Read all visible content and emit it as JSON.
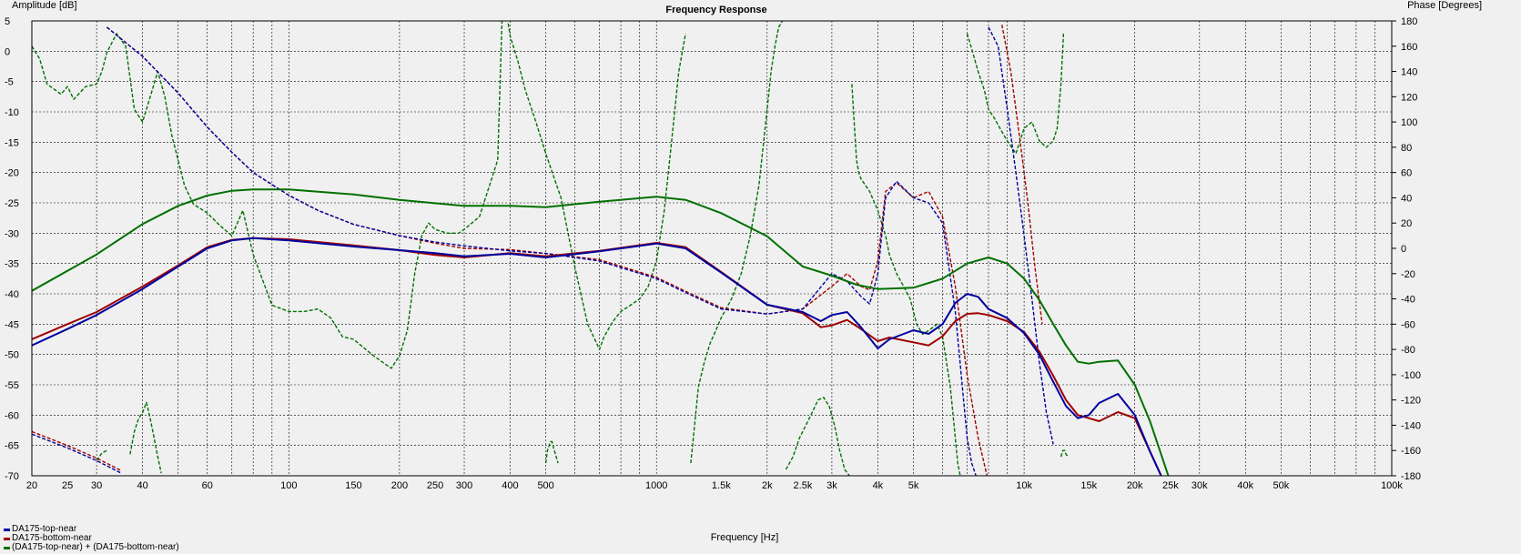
{
  "chart_data": {
    "type": "line",
    "title": "Frequency Response",
    "xlabel": "Frequency [Hz]",
    "ylabel_left": "Amplitude [dB]",
    "ylabel_right": "Phase [Degrees]",
    "x_scale": "log",
    "xlim": [
      20,
      100000
    ],
    "ylim_left": [
      -70,
      5
    ],
    "ylim_right": [
      -180,
      180
    ],
    "grid": true,
    "legend_position": "bottom-left",
    "x_ticks": [
      {
        "v": 20,
        "label": "20"
      },
      {
        "v": 25,
        "label": "25"
      },
      {
        "v": 30,
        "label": "30"
      },
      {
        "v": 40,
        "label": "40"
      },
      {
        "v": 60,
        "label": "60"
      },
      {
        "v": 100,
        "label": "100"
      },
      {
        "v": 150,
        "label": "150"
      },
      {
        "v": 200,
        "label": "200"
      },
      {
        "v": 250,
        "label": "250"
      },
      {
        "v": 300,
        "label": "300"
      },
      {
        "v": 400,
        "label": "400"
      },
      {
        "v": 500,
        "label": "500"
      },
      {
        "v": 1000,
        "label": "1000"
      },
      {
        "v": 1500,
        "label": "1.5k"
      },
      {
        "v": 2000,
        "label": "2k"
      },
      {
        "v": 2500,
        "label": "2.5k"
      },
      {
        "v": 3000,
        "label": "3k"
      },
      {
        "v": 4000,
        "label": "4k"
      },
      {
        "v": 5000,
        "label": "5k"
      },
      {
        "v": 10000,
        "label": "10k"
      },
      {
        "v": 15000,
        "label": "15k"
      },
      {
        "v": 20000,
        "label": "20k"
      },
      {
        "v": 25000,
        "label": "25k"
      },
      {
        "v": 30000,
        "label": "30k"
      },
      {
        "v": 40000,
        "label": "40k"
      },
      {
        "v": 50000,
        "label": "50k"
      },
      {
        "v": 100000,
        "label": "100k"
      }
    ],
    "y_ticks_left": [
      5,
      0,
      -5,
      -10,
      -15,
      -20,
      -25,
      -30,
      -35,
      -40,
      -45,
      -50,
      -55,
      -60,
      -65,
      -70
    ],
    "y_ticks_right": [
      180,
      160,
      140,
      120,
      100,
      80,
      60,
      40,
      20,
      0,
      -20,
      -40,
      -60,
      -80,
      -100,
      -120,
      -140,
      -160,
      -180
    ],
    "series": [
      {
        "name": "DA175-top-near",
        "color": "#0000a0",
        "kind": "amplitude",
        "axis": "left",
        "x": [
          20,
          25,
          30,
          40,
          50,
          60,
          70,
          80,
          100,
          150,
          200,
          250,
          300,
          400,
          500,
          700,
          1000,
          1200,
          1500,
          2000,
          2500,
          2800,
          3000,
          3300,
          3600,
          4000,
          4300,
          5000,
          5500,
          6000,
          6500,
          7000,
          7500,
          8000,
          9000,
          10000,
          11000,
          12000,
          13000,
          14000,
          15000,
          16000,
          18000,
          20000,
          22000,
          24000
        ],
        "y": [
          -48.5,
          -45.8,
          -43.5,
          -39.2,
          -35.5,
          -32.5,
          -31.2,
          -30.8,
          -31.2,
          -32.2,
          -32.8,
          -33.3,
          -33.8,
          -33.4,
          -34,
          -33,
          -31.7,
          -32.5,
          -36.5,
          -41.8,
          -43,
          -44.5,
          -43.5,
          -43,
          -45.5,
          -49,
          -47.5,
          -46,
          -46.6,
          -45,
          -41.5,
          -40,
          -40.5,
          -42.5,
          -44,
          -46.5,
          -50,
          -54.5,
          -58.5,
          -60.5,
          -60,
          -58,
          -56.5,
          -60,
          -66,
          -71
        ]
      },
      {
        "name": "DA175-bottom-near",
        "color": "#a00000",
        "kind": "amplitude",
        "axis": "left",
        "x": [
          20,
          25,
          30,
          40,
          50,
          60,
          70,
          80,
          100,
          150,
          200,
          250,
          300,
          400,
          500,
          700,
          1000,
          1200,
          1500,
          2000,
          2500,
          2800,
          3000,
          3300,
          3600,
          4000,
          4300,
          5000,
          5500,
          6000,
          6500,
          7000,
          7500,
          8000,
          9000,
          10000,
          11000,
          12000,
          13000,
          14000,
          15000,
          16000,
          18000,
          20000,
          22000,
          24000
        ],
        "y": [
          -47.5,
          -45,
          -43,
          -38.8,
          -35.3,
          -32.3,
          -31.1,
          -30.8,
          -31,
          -32,
          -32.8,
          -33.6,
          -34,
          -33.3,
          -33.8,
          -32.9,
          -31.6,
          -32.3,
          -36.4,
          -41.8,
          -43.2,
          -45.5,
          -45.2,
          -44.3,
          -45.8,
          -47.8,
          -47.2,
          -48,
          -48.5,
          -47,
          -44.5,
          -43.3,
          -43.2,
          -43.5,
          -44.5,
          -46.3,
          -49.5,
          -53.5,
          -57.5,
          -60,
          -60.5,
          -61,
          -59.5,
          -60.5,
          -66,
          -71
        ]
      },
      {
        "name": "(DA175-top-near) + (DA175-bottom-near)",
        "color": "#007000",
        "kind": "amplitude",
        "axis": "left",
        "x": [
          20,
          30,
          40,
          50,
          60,
          70,
          80,
          100,
          150,
          200,
          300,
          400,
          500,
          700,
          1000,
          1200,
          1500,
          2000,
          2500,
          3000,
          3500,
          4000,
          5000,
          6000,
          7000,
          8000,
          9000,
          10000,
          11000,
          12000,
          13000,
          14000,
          15000,
          16000,
          18000,
          20000,
          22000,
          25000
        ],
        "y": [
          -39.5,
          -33.5,
          -28.5,
          -25.5,
          -23.8,
          -23,
          -22.8,
          -22.8,
          -23.6,
          -24.5,
          -25.5,
          -25.5,
          -25.7,
          -24.8,
          -24,
          -24.5,
          -26.7,
          -30.5,
          -35.5,
          -37,
          -38.5,
          -39.2,
          -39,
          -37.5,
          -35,
          -34,
          -35,
          -37.5,
          -41,
          -45,
          -48.5,
          -51.2,
          -51.5,
          -51.2,
          -51,
          -55,
          -61,
          -71
        ]
      },
      {
        "name": "DA175-top-near phase",
        "color": "#0000a0",
        "kind": "phase",
        "axis": "right",
        "segments": [
          {
            "x": [
              20,
              25,
              30,
              35
            ],
            "y": [
              -147,
              -158,
              -168,
              -178
            ]
          },
          {
            "x": [
              32,
              40,
              50,
              60,
              70,
              80,
              100,
              120,
              150,
              200,
              250,
              300,
              400,
              500,
              700,
              1000,
              1200,
              1500,
              2000,
              2500,
              3000,
              3300,
              3600,
              3800,
              4000,
              4200,
              4500,
              5000,
              5500,
              6000,
              6500,
              7000,
              7200,
              7500
            ],
            "y": [
              175,
              152,
              123,
              96,
              76,
              60,
              42,
              30,
              19,
              10,
              5,
              2,
              -2,
              -4,
              -10,
              -24,
              -35,
              -48,
              -52,
              -48,
              -20,
              -26,
              -38,
              -44,
              -20,
              40,
              53,
              40,
              36,
              20,
              -50,
              -150,
              -170,
              -185
            ]
          },
          {
            "x": [
              8000,
              8500,
              9000,
              9500,
              10000,
              10500,
              11000,
              11500,
              12000
            ],
            "y": [
              175,
              160,
              110,
              60,
              10,
              -40,
              -90,
              -130,
              -155
            ]
          }
        ]
      },
      {
        "name": "DA175-bottom-near phase",
        "color": "#a00000",
        "kind": "phase",
        "axis": "right",
        "segments": [
          {
            "x": [
              20,
              25,
              30,
              35
            ],
            "y": [
              -145,
              -156,
              -166,
              -176
            ]
          },
          {
            "x": [
              32,
              40,
              50,
              60,
              70,
              80,
              100,
              120,
              150,
              200,
              250,
              300,
              400,
              500,
              700,
              1000,
              1200,
              1500,
              2000,
              2500,
              3000,
              3300,
              3600,
              3800,
              4000,
              4200,
              4500,
              5000,
              5500,
              6000,
              6500,
              7000,
              7500,
              8000
            ],
            "y": [
              175,
              152,
              123,
              96,
              76,
              60,
              42,
              30,
              19,
              10,
              4,
              0,
              -1,
              -4,
              -9,
              -23,
              -34,
              -47,
              -52,
              -48,
              -30,
              -20,
              -30,
              -33,
              -10,
              45,
              52,
              40,
              45,
              25,
              -30,
              -100,
              -150,
              -185
            ]
          },
          {
            "x": [
              8700,
              9200,
              9700,
              10200,
              10700,
              11200
            ],
            "y": [
              177,
              140,
              90,
              40,
              -15,
              -60
            ]
          }
        ]
      },
      {
        "name": "(DA175-top-near) + (DA175-bottom-near) phase",
        "color": "#007000",
        "kind": "phase",
        "axis": "right",
        "segments": [
          {
            "x": [
              20,
              21,
              22,
              24,
              25,
              26,
              28,
              30,
              31,
              32,
              34,
              36,
              38,
              40,
              42,
              44,
              46,
              48,
              52,
              55,
              60,
              65,
              70,
              75,
              80,
              90,
              100,
              110,
              120,
              130,
              140,
              150,
              170,
              190,
              200,
              210,
              220,
              230,
              240,
              250,
              270,
              290,
              300,
              330,
              370,
              380
            ],
            "y": [
              160,
              150,
              130,
              122,
              128,
              118,
              128,
              130,
              140,
              155,
              170,
              160,
              110,
              100,
              120,
              140,
              120,
              90,
              50,
              35,
              28,
              18,
              10,
              30,
              -5,
              -45,
              -50,
              -50,
              -48,
              -55,
              -70,
              -72,
              -85,
              -95,
              -85,
              -65,
              -20,
              10,
              20,
              15,
              12,
              12,
              15,
              25,
              70,
              180
            ]
          },
          {
            "x": [
              395,
              400,
              410,
              420,
              440,
              470,
              500,
              550,
              600,
              650,
              700,
              720,
              760,
              800,
              850,
              900,
              950,
              1000,
              1050,
              1100,
              1150,
              1200
            ],
            "y": [
              178,
              168,
              158,
              148,
              125,
              100,
              75,
              40,
              -15,
              -60,
              -80,
              -70,
              -58,
              -50,
              -45,
              -40,
              -30,
              -10,
              30,
              85,
              140,
              170
            ]
          },
          {
            "x": [
              1240,
              1270,
              1300,
              1350,
              1400,
              1450,
              1500,
              1600,
              1700,
              1800,
              1900,
              2000,
              2050,
              2100,
              2150,
              2200
            ],
            "y": [
              -170,
              -140,
              -110,
              -90,
              -75,
              -65,
              -55,
              -40,
              -20,
              10,
              50,
              110,
              140,
              160,
              175,
              180
            ]
          },
          {
            "x": [
              3400,
              3450,
              3500,
              3550,
              3600,
              3800,
              4000,
              4200,
              4300,
              4500,
              4700,
              4900,
              5100,
              5300,
              5500,
              5800,
              6000,
              6300,
              6500,
              6600,
              6700
            ],
            "y": [
              130,
              100,
              70,
              60,
              55,
              45,
              30,
              10,
              -5,
              -20,
              -30,
              -40,
              -60,
              -68,
              -65,
              -60,
              -70,
              -110,
              -150,
              -170,
              -180
            ]
          },
          {
            "x": [
              7000,
              7200,
              7500,
              7800,
              8000,
              8300,
              8600,
              9000,
              9500,
              10000,
              10500,
              11000,
              11500,
              12000,
              12300,
              12600,
              12800
            ],
            "y": [
              170,
              158,
              140,
              125,
              110,
              103,
              95,
              85,
              75,
              95,
              100,
              85,
              80,
              85,
              95,
              130,
              170
            ]
          },
          {
            "x": [
              37,
              38,
              39,
              40,
              41,
              42,
              43,
              44,
              45
            ],
            "y": [
              -163,
              -145,
              -135,
              -130,
              -122,
              -135,
              -150,
              -165,
              -178
            ]
          },
          {
            "x": [
              500,
              505,
              515,
              520,
              525,
              540
            ],
            "y": [
              -170,
              -160,
              -153,
              -153,
              -158,
              -170
            ]
          },
          {
            "x": [
              2250,
              2350,
              2450,
              2550,
              2650,
              2750,
              2850,
              2950,
              3050,
              3150,
              3250,
              3350
            ],
            "y": [
              -175,
              -165,
              -150,
              -140,
              -130,
              -120,
              -118,
              -125,
              -140,
              -160,
              -175,
              -180
            ]
          },
          {
            "x": [
              12600,
              12750,
              12900,
              13000,
              13200
            ],
            "y": [
              -165,
              -160,
              -160,
              -163,
              -165
            ]
          },
          {
            "x": [
              30,
              31,
              32
            ],
            "y": [
              -168,
              -162,
              -160
            ]
          }
        ]
      }
    ]
  },
  "legend": [
    {
      "label": "DA175-top-near",
      "color": "#0000a0"
    },
    {
      "label": "DA175-bottom-near",
      "color": "#a00000"
    },
    {
      "label": "(DA175-top-near) + (DA175-bottom-near)",
      "color": "#007000"
    }
  ]
}
